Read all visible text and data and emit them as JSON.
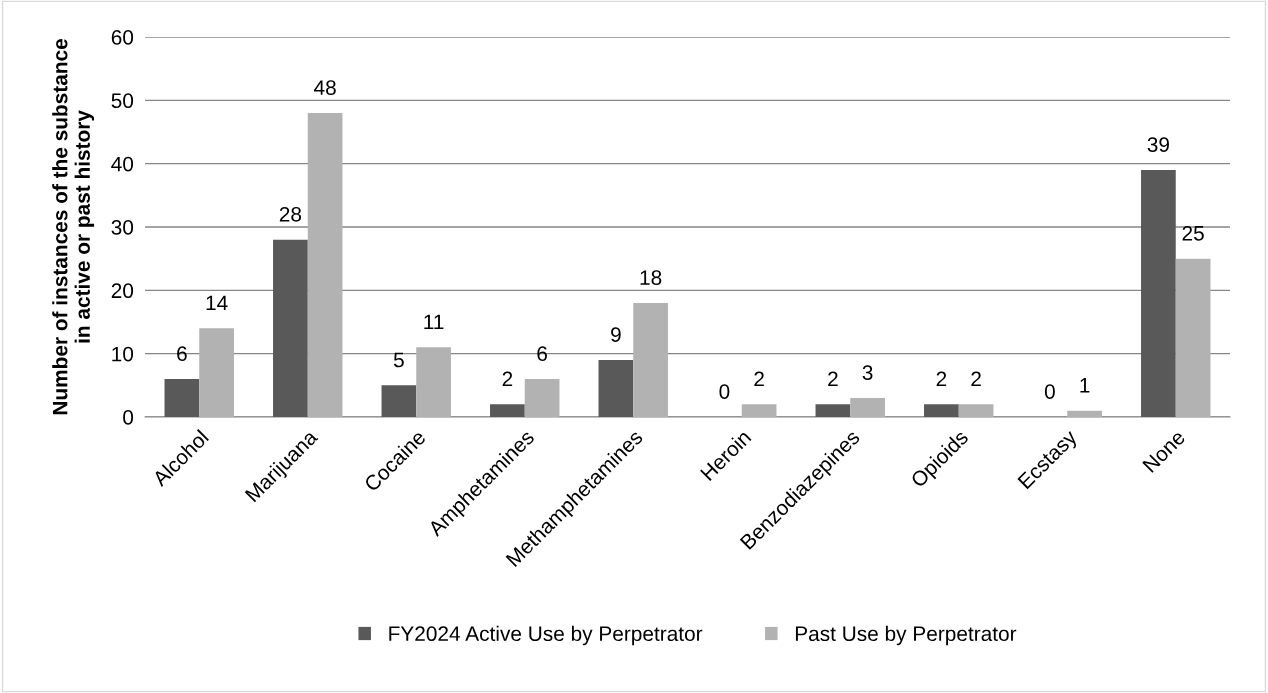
{
  "chart_data": {
    "type": "bar",
    "ylabel": "Number of instances of the substance\nin active or past history",
    "categories": [
      "Alcohol",
      "Marijuana",
      "Cocaine",
      "Amphetamines",
      "Methamphetamines",
      "Heroin",
      "Benzodiazepines",
      "Opioids",
      "Ecstasy",
      "None"
    ],
    "series": [
      {
        "name": "FY2024 Active Use by Perpetrator",
        "color": "#595959",
        "values": [
          6,
          28,
          5,
          2,
          9,
          0,
          2,
          2,
          0,
          39
        ]
      },
      {
        "name": "Past Use by Perpetrator",
        "color": "#b2b2b2",
        "values": [
          14,
          48,
          11,
          6,
          18,
          2,
          3,
          2,
          1,
          25
        ]
      }
    ],
    "ylim": [
      0,
      60
    ],
    "yticks": [
      0,
      10,
      20,
      30,
      40,
      50,
      60
    ],
    "grid": "y",
    "legend": "bottom",
    "data_labels": true
  }
}
